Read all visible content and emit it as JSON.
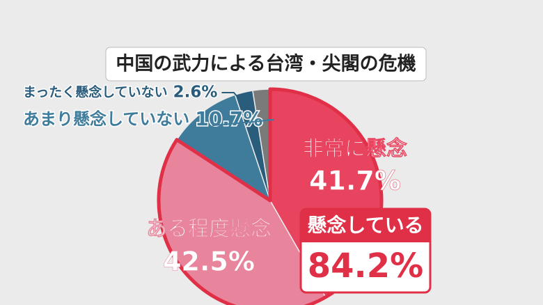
{
  "chart_data": {
    "type": "pie",
    "title": "中国の武力による台湾・尖閣の危機",
    "categories": [
      "非常に懸念",
      "ある程度懸念",
      "あまり懸念していない",
      "まったく懸念していない",
      null
    ],
    "values": [
      41.7,
      42.5,
      10.7,
      2.6,
      2.5
    ],
    "value_labels": [
      "41.7%",
      "42.5%",
      "10.7%",
      "2.6%",
      null
    ],
    "colors": [
      "#e8435f",
      "#e8849c",
      "#3f7c9c",
      "#2a5c7c",
      "#7a7a7a"
    ],
    "annotation": {
      "text": "懸念している",
      "value": 84.2,
      "value_label": "84.2%",
      "color": "#e03048"
    }
  }
}
